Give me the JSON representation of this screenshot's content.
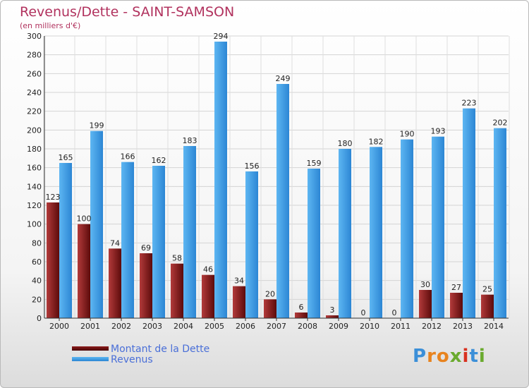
{
  "title": "Revenus/Dette - SAINT-SAMSON",
  "subtitle": "(en milliers d'€)",
  "legend": {
    "debt_label": "Montant de la Dette",
    "revenue_label": "Revenus"
  },
  "logo": {
    "letters": [
      "P",
      "r",
      "o",
      "x",
      "i",
      "t",
      "i"
    ],
    "colors": [
      "#3b8fd8",
      "#e8831e",
      "#e8831e",
      "#6aaa2e",
      "#d8311f",
      "#3b8fd8",
      "#6aaa2e"
    ]
  },
  "colors": {
    "debt": "#8b1a1a",
    "revenue": "#3a9ae6"
  },
  "chart_data": {
    "type": "bar",
    "title": "Revenus/Dette - SAINT-SAMSON",
    "subtitle": "(en milliers d'€)",
    "categories": [
      "2000",
      "2001",
      "2002",
      "2003",
      "2004",
      "2005",
      "2006",
      "2007",
      "2008",
      "2009",
      "2010",
      "2011",
      "2012",
      "2013",
      "2014"
    ],
    "series": [
      {
        "name": "Montant de la Dette",
        "values": [
          123,
          100,
          74,
          69,
          58,
          46,
          34,
          20,
          6,
          3,
          0,
          0,
          30,
          27,
          25
        ]
      },
      {
        "name": "Revenus",
        "values": [
          165,
          199,
          166,
          162,
          183,
          294,
          156,
          249,
          159,
          180,
          182,
          190,
          193,
          223,
          202
        ]
      }
    ],
    "yticks": [
      0,
      20,
      40,
      60,
      80,
      100,
      120,
      140,
      160,
      180,
      200,
      220,
      240,
      260,
      280,
      300
    ],
    "ylim": [
      0,
      300
    ],
    "grid": true,
    "legend_position": "bottom-left"
  }
}
